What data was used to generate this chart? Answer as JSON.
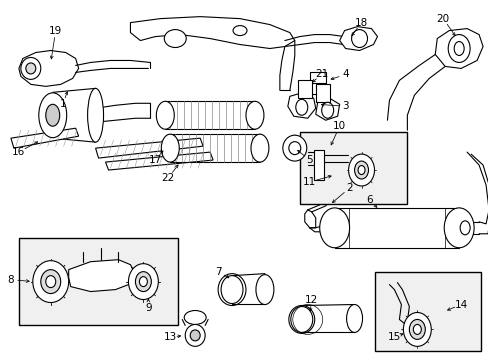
{
  "background_color": "#ffffff",
  "line_color": "#000000",
  "text_color": "#000000",
  "font_size": 7.5,
  "fig_width": 4.89,
  "fig_height": 3.6,
  "dpi": 100
}
